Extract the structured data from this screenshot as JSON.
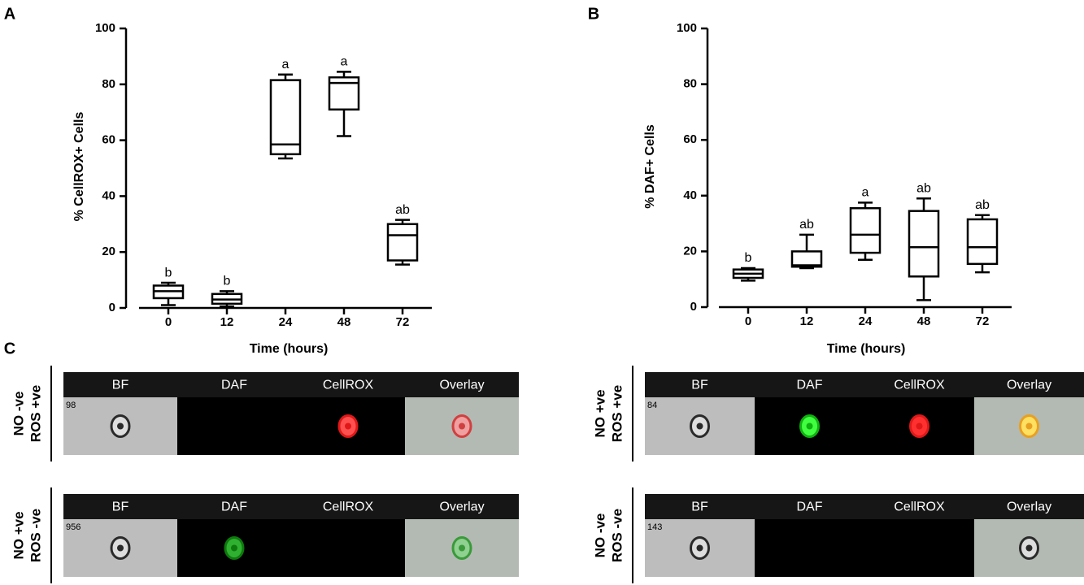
{
  "chart_data": [
    {
      "type": "box",
      "panel_label": "A",
      "y_label": "% CellROX+ Cells",
      "x_label": "Time (hours)",
      "categories": [
        "0",
        "12",
        "24",
        "48",
        "72"
      ],
      "boxes": [
        {
          "min": 1,
          "q1": 3.5,
          "median": 6,
          "q3": 8,
          "max": 9,
          "label": "b"
        },
        {
          "min": 0.5,
          "q1": 1.5,
          "median": 3,
          "q3": 5,
          "max": 6,
          "label": "b"
        },
        {
          "min": 53.5,
          "q1": 55,
          "median": 58.5,
          "q3": 81.5,
          "max": 83.5,
          "label": "a"
        },
        {
          "min": 61.5,
          "q1": 71,
          "median": 80.5,
          "q3": 82.5,
          "max": 84.5,
          "label": "a"
        },
        {
          "min": 15.5,
          "q1": 17,
          "median": 26,
          "q3": 30,
          "max": 31.5,
          "label": "ab"
        }
      ],
      "color": "#000000",
      "ylim": [
        0,
        100
      ],
      "yticks": [
        0,
        20,
        40,
        60,
        80,
        100
      ]
    },
    {
      "type": "box",
      "panel_label": "B",
      "y_label": "% DAF+ Cells",
      "x_label": "Time (hours)",
      "categories": [
        "0",
        "12",
        "24",
        "48",
        "72"
      ],
      "boxes": [
        {
          "min": 9.5,
          "q1": 10.5,
          "median": 12,
          "q3": 13.5,
          "max": 14,
          "label": "b"
        },
        {
          "min": 14,
          "q1": 14.5,
          "median": 15,
          "q3": 20,
          "max": 26,
          "label": "ab"
        },
        {
          "min": 17,
          "q1": 19.5,
          "median": 26,
          "q3": 35.5,
          "max": 37.5,
          "label": "a"
        },
        {
          "min": 2.5,
          "q1": 11,
          "median": 21.5,
          "q3": 34.5,
          "max": 39,
          "label": "ab"
        },
        {
          "min": 12.5,
          "q1": 15.5,
          "median": 21.5,
          "q3": 31.5,
          "max": 33,
          "label": "ab"
        }
      ],
      "color": "#000000",
      "ylim": [
        0,
        100
      ],
      "yticks": [
        0,
        20,
        40,
        60,
        80,
        100
      ]
    }
  ],
  "panel_c": {
    "label": "C",
    "groups": [
      {
        "row_labels": [
          "NO -ve",
          "ROS +ve"
        ],
        "number": "98",
        "headers": [
          "BF",
          "DAF",
          "CellROX",
          "Overlay"
        ]
      },
      {
        "row_labels": [
          "NO +ve",
          "ROS +ve"
        ],
        "number": "84",
        "headers": [
          "BF",
          "DAF",
          "CellROX",
          "Overlay"
        ]
      },
      {
        "row_labels": [
          "NO +ve",
          "ROS -ve"
        ],
        "number": "956",
        "headers": [
          "BF",
          "DAF",
          "CellROX",
          "Overlay"
        ]
      },
      {
        "row_labels": [
          "NO -ve",
          "ROS -ve"
        ],
        "number": "143",
        "headers": [
          "BF",
          "DAF",
          "CellROX",
          "Overlay"
        ]
      }
    ]
  }
}
